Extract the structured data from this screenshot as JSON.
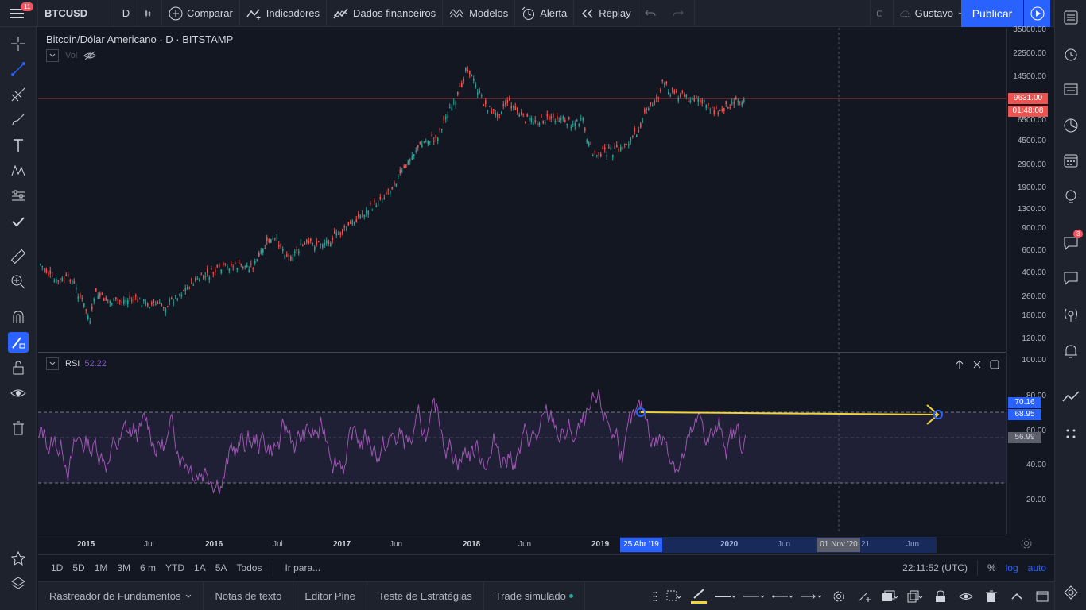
{
  "topbar": {
    "menu_badge": "11",
    "symbol": "BTCUSD",
    "interval": "D",
    "compare": "Comparar",
    "indicators": "Indicadores",
    "financials": "Dados financeiros",
    "templates": "Modelos",
    "alert": "Alerta",
    "replay": "Replay",
    "user": "Gustavo",
    "publish": "Publicar"
  },
  "legend": {
    "title": "Bitcoin/Dólar Americano · D · BITSTAMP",
    "vol": "Vol",
    "rsi_label": "RSI",
    "rsi_value": "52.22"
  },
  "price_axis": [
    "35000.00",
    "22500.00",
    "14500.00",
    "6500.00",
    "4500.00",
    "2900.00",
    "1900.00",
    "1300.00",
    "900.00",
    "600.00",
    "400.00",
    "260.00",
    "180.00",
    "120.00"
  ],
  "price_tags": {
    "last": "9631.00",
    "countdown": "01:48:08"
  },
  "rsi_axis": [
    "100.00",
    "80.00",
    "60.00",
    "40.00",
    "20.00"
  ],
  "rsi_tags": {
    "a": "70.16",
    "b": "68.95",
    "c": "56.99"
  },
  "time_axis": [
    "2015",
    "Jul",
    "2016",
    "Jul",
    "2017",
    "Jun",
    "2018",
    "Jun",
    "2019",
    "2020",
    "Jun",
    "21",
    "Jun"
  ],
  "time_tags": {
    "a": "25 Abr '19",
    "b": "01 Nov '20"
  },
  "range_bar": {
    "ranges": [
      "1D",
      "5D",
      "1M",
      "3M",
      "6 m",
      "YTD",
      "1A",
      "5A",
      "Todos"
    ],
    "goto": "Ir para...",
    "clock": "22:11:52 (UTC)",
    "pct": "%",
    "log": "log",
    "auto": "auto"
  },
  "bottom_tabs": [
    "Rastreador de Fundamentos",
    "Notas de texto",
    "Editor Pine",
    "Teste de Estratégias",
    "Trade simulado"
  ],
  "right_badge": "3",
  "colors": {
    "accent": "#2962ff",
    "up": "#26a69a",
    "down": "#ef5350",
    "rsi": "#7e57c2",
    "trend": "#f0d43a"
  }
}
